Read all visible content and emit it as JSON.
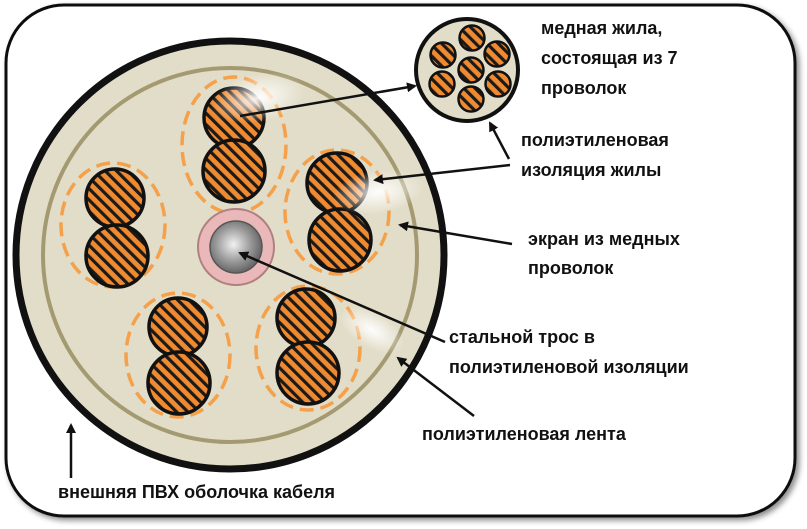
{
  "labels": {
    "copper_core_line1": "медная жила,",
    "copper_core_line2": "состоящая из 7",
    "copper_core_line3": "проволок",
    "core_insulation_line1": "полиэтиленовая",
    "core_insulation_line2": "изоляция жилы",
    "screen_line1": "экран из медных",
    "screen_line2": "проволок",
    "steel_rope_line1": "стальной трос в",
    "steel_rope_line2": "полиэтиленовой изоляции",
    "pe_tape": "полиэтиленовая лента",
    "outer_sheath": "внешняя ПВХ оболочка кабеля"
  },
  "colors": {
    "copper": "#f08a30",
    "stripe": "#1a1a1a",
    "filler": "#e2ddc8",
    "insulation_dash": "#f5a04a",
    "pe_tape": "#a49a72",
    "steel": "#8a8a8a",
    "steel_insulation": "#eab8b8"
  }
}
